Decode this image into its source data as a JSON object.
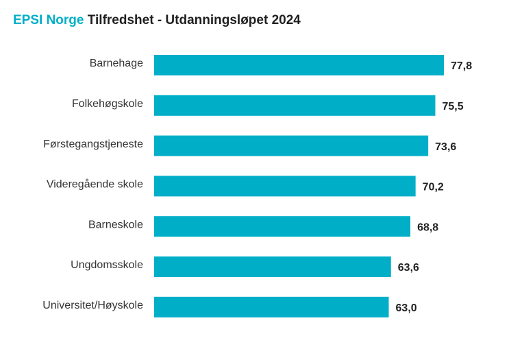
{
  "header": {
    "brand": "EPSI Norge",
    "title": "Tilfredshet - Utdanningsløpet 2024"
  },
  "colors": {
    "brand": "#00AFC7",
    "bar": "#00AFC7",
    "title_text": "#1f1f1f"
  },
  "chart_data": {
    "type": "bar",
    "orientation": "horizontal",
    "title": "EPSI Norge Tilfredshet - Utdanningsløpet 2024",
    "categories": [
      "Barnehage",
      "Folkehøgskole",
      "Førstegangstjeneste",
      "Videregående skole",
      "Barneskole",
      "Ungdomsskole",
      "Universitet/Høyskole"
    ],
    "values": [
      77.8,
      75.5,
      73.6,
      70.2,
      68.8,
      63.6,
      63.0
    ],
    "value_labels": [
      "77,8",
      "75,5",
      "73,6",
      "70,2",
      "68,8",
      "63,6",
      "63,0"
    ],
    "xlabel": "",
    "ylabel": "",
    "grid": false,
    "legend": "none",
    "axis_visible": false
  }
}
